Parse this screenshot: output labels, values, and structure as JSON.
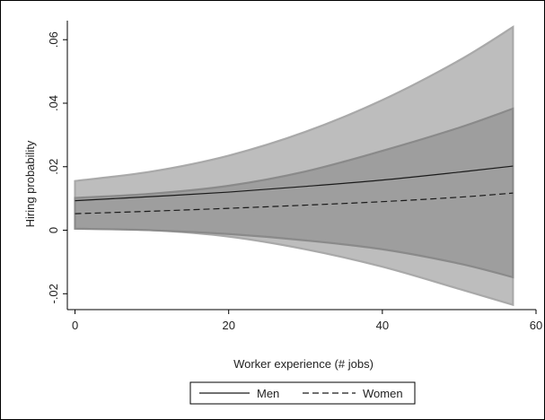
{
  "chart_data": {
    "type": "line",
    "title": "",
    "xlabel": "Worker experience (# jobs)",
    "ylabel": "Hiring probability",
    "xlim": [
      -1,
      60
    ],
    "ylim": [
      -0.025,
      0.066
    ],
    "xticks": [
      {
        "value": 0,
        "label": "0"
      },
      {
        "value": 20,
        "label": "20"
      },
      {
        "value": 40,
        "label": "40"
      },
      {
        "value": 60,
        "label": "60"
      }
    ],
    "yticks": [
      {
        "value": -0.02,
        "label": "-.02"
      },
      {
        "value": 0,
        "label": "0"
      },
      {
        "value": 0.02,
        "label": ".02"
      },
      {
        "value": 0.04,
        "label": ".04"
      },
      {
        "value": 0.06,
        "label": ".06"
      }
    ],
    "grid": false,
    "legend_position": "bottom",
    "series": [
      {
        "name": "Men",
        "style": "solid",
        "color": "#1a1a1a",
        "ci_color": "#bdbdbd",
        "ci_edge": "#a9a9a9",
        "x": [
          0,
          10,
          20,
          30,
          40,
          50,
          57
        ],
        "y": [
          0.0093,
          0.0106,
          0.012,
          0.0138,
          0.0158,
          0.0183,
          0.0202
        ],
        "ci_lower": [
          0.0005,
          0.0,
          -0.002,
          -0.006,
          -0.0115,
          -0.0185,
          -0.0235
        ],
        "ci_upper": [
          0.0155,
          0.0185,
          0.0235,
          0.031,
          0.041,
          0.0535,
          0.064
        ]
      },
      {
        "name": "Women",
        "style": "dashed",
        "color": "#1a1a1a",
        "ci_color": "#9e9e9e",
        "ci_edge": "#8a8a8a",
        "x": [
          0,
          10,
          20,
          30,
          40,
          50,
          57
        ],
        "y": [
          0.0052,
          0.006,
          0.0069,
          0.0079,
          0.009,
          0.0104,
          0.0117
        ],
        "ci_lower": [
          0.0005,
          0.0,
          -0.0012,
          -0.0032,
          -0.006,
          -0.0105,
          -0.0148
        ],
        "ci_upper": [
          0.0102,
          0.0115,
          0.014,
          0.0185,
          0.025,
          0.0323,
          0.0383
        ]
      }
    ]
  }
}
